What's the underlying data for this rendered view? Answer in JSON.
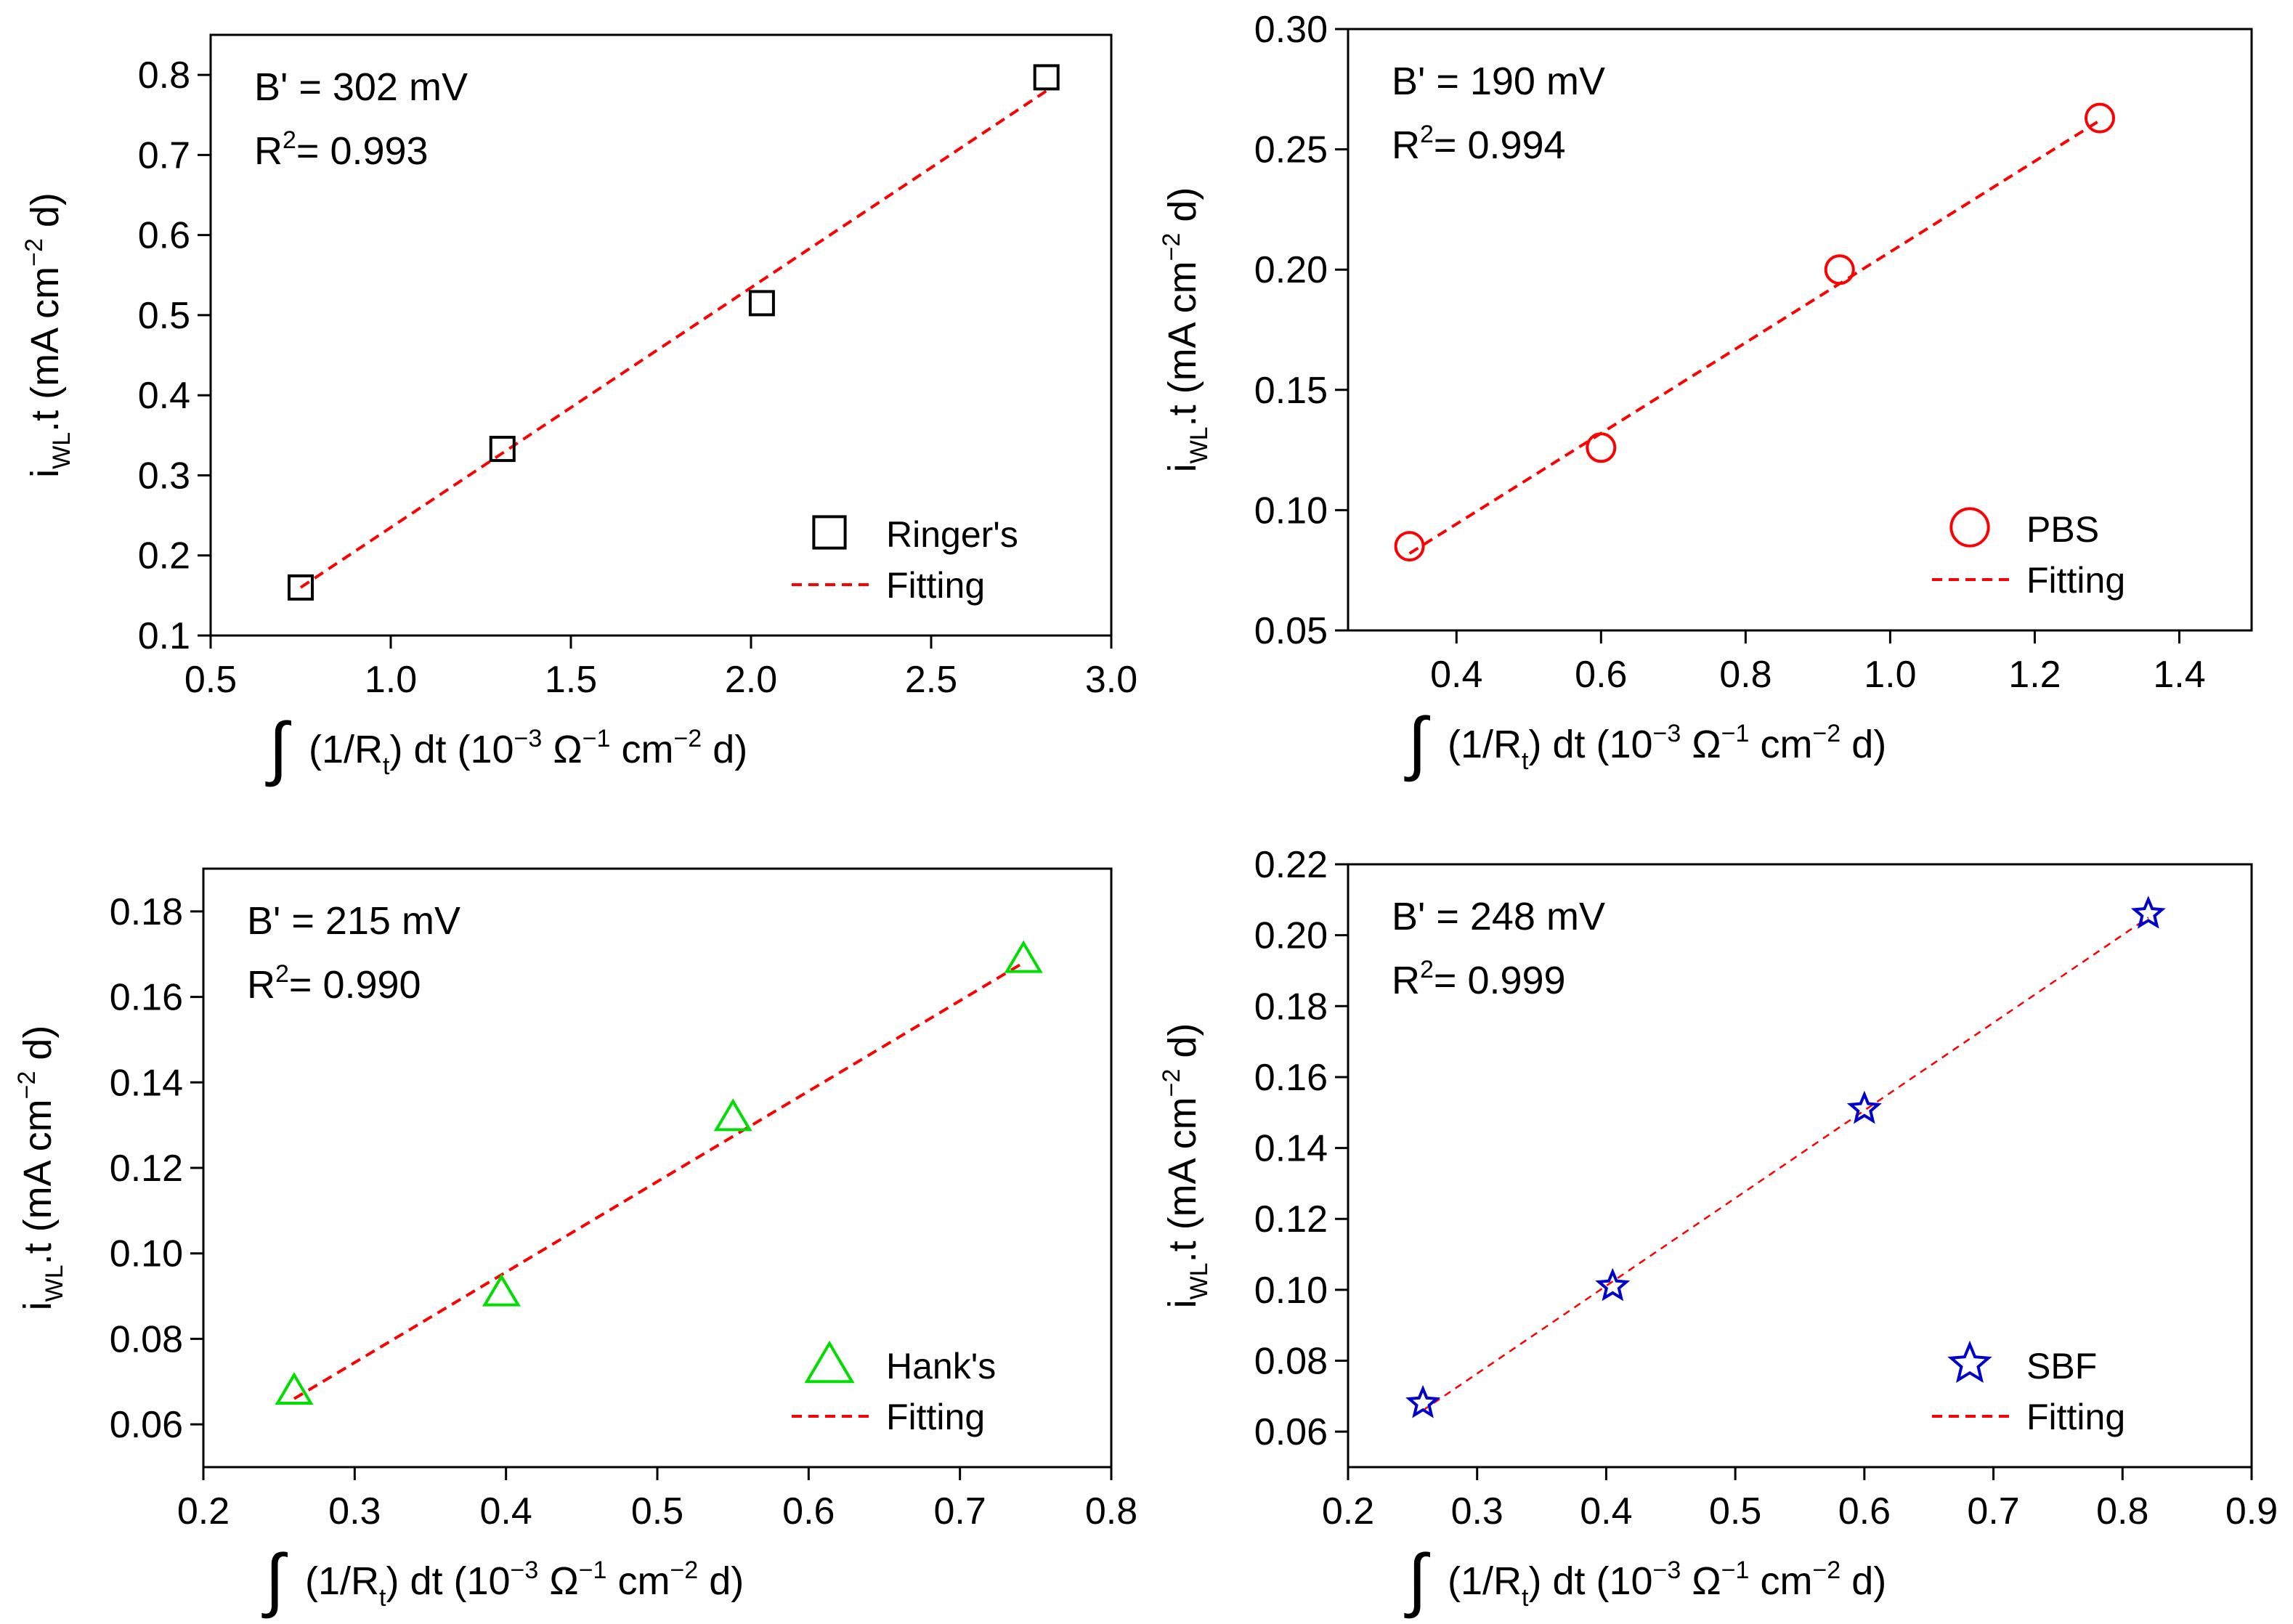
{
  "chart_data": [
    {
      "type": "scatter",
      "panel": "top-left",
      "annotation": {
        "b_prime": "B' = 302 mV",
        "r2_prefix": "R",
        "r2_value": "= 0.993"
      },
      "xlabel": {
        "pre": "(1/R",
        "sub": "t",
        "mid": ") dt (10",
        "exp1": "−3",
        "omega": " Ω",
        "exp2": "−1",
        "cm": " cm",
        "exp3": "−2",
        "post": " d)"
      },
      "ylabel": {
        "pre": "i",
        "sub": "WL",
        "mid": ".t (mA cm",
        "sup": "−2",
        "post": " d)"
      },
      "xlim": [
        0.5,
        3.0
      ],
      "ylim": [
        0.1,
        0.85
      ],
      "xticks": [
        0.5,
        1.0,
        1.5,
        2.0,
        2.5,
        3.0
      ],
      "xtick_labels": [
        "0.5",
        "1.0",
        "1.5",
        "2.0",
        "2.5",
        "3.0"
      ],
      "yticks": [
        0.1,
        0.2,
        0.3,
        0.4,
        0.5,
        0.6,
        0.7,
        0.8
      ],
      "ytick_labels": [
        "0.1",
        "0.2",
        "0.3",
        "0.4",
        "0.5",
        "0.6",
        "0.7",
        "0.8"
      ],
      "series": [
        {
          "name": "Ringer's",
          "marker": "square",
          "color": "#000000",
          "x": [
            0.75,
            1.31,
            2.03,
            2.82
          ],
          "y": [
            0.16,
            0.333,
            0.515,
            0.797
          ]
        }
      ],
      "fit": {
        "name": "Fitting",
        "color": "#ff0000",
        "x": [
          0.75,
          2.82
        ],
        "y": [
          0.16,
          0.78
        ]
      },
      "legend": {
        "placement": "bottom-right",
        "entries": [
          "Ringer's",
          "Fitting"
        ]
      }
    },
    {
      "type": "scatter",
      "panel": "top-right",
      "annotation": {
        "b_prime": "B' = 190 mV",
        "r2_prefix": "R",
        "r2_value": "= 0.994"
      },
      "xlabel": {
        "pre": "(1/R",
        "sub": "t",
        "mid": ") dt (10",
        "exp1": "−3",
        "omega": " Ω",
        "exp2": "−1",
        "cm": " cm",
        "exp3": "−2",
        "post": " d)"
      },
      "ylabel": {
        "pre": "i",
        "sub": "WL",
        "mid": ".t (mA cm",
        "sup": "−2",
        "post": " d)"
      },
      "xlim": [
        0.25,
        1.5
      ],
      "ylim": [
        0.05,
        0.3
      ],
      "xticks": [
        0.4,
        0.6,
        0.8,
        1.0,
        1.2,
        1.4
      ],
      "xtick_labels": [
        "0.4",
        "0.6",
        "0.8",
        "1.0",
        "1.2",
        "1.4"
      ],
      "yticks": [
        0.05,
        0.1,
        0.15,
        0.2,
        0.25,
        0.3
      ],
      "ytick_labels": [
        "0.05",
        "0.10",
        "0.15",
        "0.20",
        "0.25",
        "0.30"
      ],
      "series": [
        {
          "name": "PBS",
          "marker": "circle",
          "color": "#ff0000",
          "x": [
            0.335,
            0.6,
            0.93,
            1.29
          ],
          "y": [
            0.085,
            0.126,
            0.2,
            0.263
          ]
        }
      ],
      "fit": {
        "name": "Fitting",
        "color": "#ff0000",
        "x": [
          0.335,
          1.29
        ],
        "y": [
          0.082,
          0.262
        ]
      },
      "legend": {
        "placement": "bottom-right",
        "entries": [
          "PBS",
          "Fitting"
        ]
      }
    },
    {
      "type": "scatter",
      "panel": "bottom-left",
      "annotation": {
        "b_prime": "B' = 215 mV",
        "r2_prefix": "R",
        "r2_value": "= 0.990"
      },
      "xlabel": {
        "pre": "(1/R",
        "sub": "t",
        "mid": ") dt (10",
        "exp1": "−3",
        "omega": " Ω",
        "exp2": "−1",
        "cm": " cm",
        "exp3": "−2",
        "post": " d)"
      },
      "ylabel": {
        "pre": "i",
        "sub": "WL",
        "mid": ".t (mA cm",
        "sup": "−2",
        "post": " d)"
      },
      "xlim": [
        0.2,
        0.8
      ],
      "ylim": [
        0.05,
        0.19
      ],
      "xticks": [
        0.2,
        0.3,
        0.4,
        0.5,
        0.6,
        0.7,
        0.8
      ],
      "xtick_labels": [
        "0.2",
        "0.3",
        "0.4",
        "0.5",
        "0.6",
        "0.7",
        "0.8"
      ],
      "yticks": [
        0.06,
        0.08,
        0.1,
        0.12,
        0.14,
        0.16,
        0.18
      ],
      "ytick_labels": [
        "0.06",
        "0.08",
        "0.10",
        "0.12",
        "0.14",
        "0.16",
        "0.18"
      ],
      "series": [
        {
          "name": "Hank's",
          "marker": "triangle",
          "color": "#00dd00",
          "x": [
            0.26,
            0.397,
            0.55,
            0.742
          ],
          "y": [
            0.068,
            0.091,
            0.132,
            0.169
          ]
        }
      ],
      "fit": {
        "name": "Fitting",
        "color": "#ff0000",
        "x": [
          0.26,
          0.742
        ],
        "y": [
          0.066,
          0.168
        ]
      },
      "legend": {
        "placement": "bottom-right",
        "entries": [
          "Hank's",
          "Fitting"
        ]
      }
    },
    {
      "type": "scatter",
      "panel": "bottom-right",
      "annotation": {
        "b_prime": "B' = 248 mV",
        "r2_prefix": "R",
        "r2_value": "= 0.999"
      },
      "xlabel": {
        "pre": "(1/R",
        "sub": "t",
        "mid": ") dt (10",
        "exp1": "−3",
        "omega": " Ω",
        "exp2": "−1",
        "cm": " cm",
        "exp3": "−2",
        "post": " d)"
      },
      "ylabel": {
        "pre": "i",
        "sub": "WL",
        "mid": ".t (mA cm",
        "sup": "−2",
        "post": " d)"
      },
      "xlim": [
        0.2,
        0.9
      ],
      "ylim": [
        0.05,
        0.22
      ],
      "xticks": [
        0.2,
        0.3,
        0.4,
        0.5,
        0.6,
        0.7,
        0.8,
        0.9
      ],
      "xtick_labels": [
        "0.2",
        "0.3",
        "0.4",
        "0.5",
        "0.6",
        "0.7",
        "0.8",
        "0.9"
      ],
      "yticks": [
        0.06,
        0.08,
        0.1,
        0.12,
        0.14,
        0.16,
        0.18,
        0.2,
        0.22
      ],
      "ytick_labels": [
        "0.06",
        "0.08",
        "0.10",
        "0.12",
        "0.14",
        "0.16",
        "0.18",
        "0.20",
        "0.22"
      ],
      "series": [
        {
          "name": "SBF",
          "marker": "star",
          "color": "#0000cc",
          "x": [
            0.258,
            0.405,
            0.6,
            0.82
          ],
          "y": [
            0.068,
            0.101,
            0.151,
            0.206
          ]
        }
      ],
      "fit": {
        "name": "Fitting",
        "color": "#ff0000",
        "x": [
          0.258,
          0.82
        ],
        "y": [
          0.066,
          0.205
        ]
      },
      "legend": {
        "placement": "bottom-right",
        "entries": [
          "SBF",
          "Fitting"
        ]
      }
    }
  ]
}
